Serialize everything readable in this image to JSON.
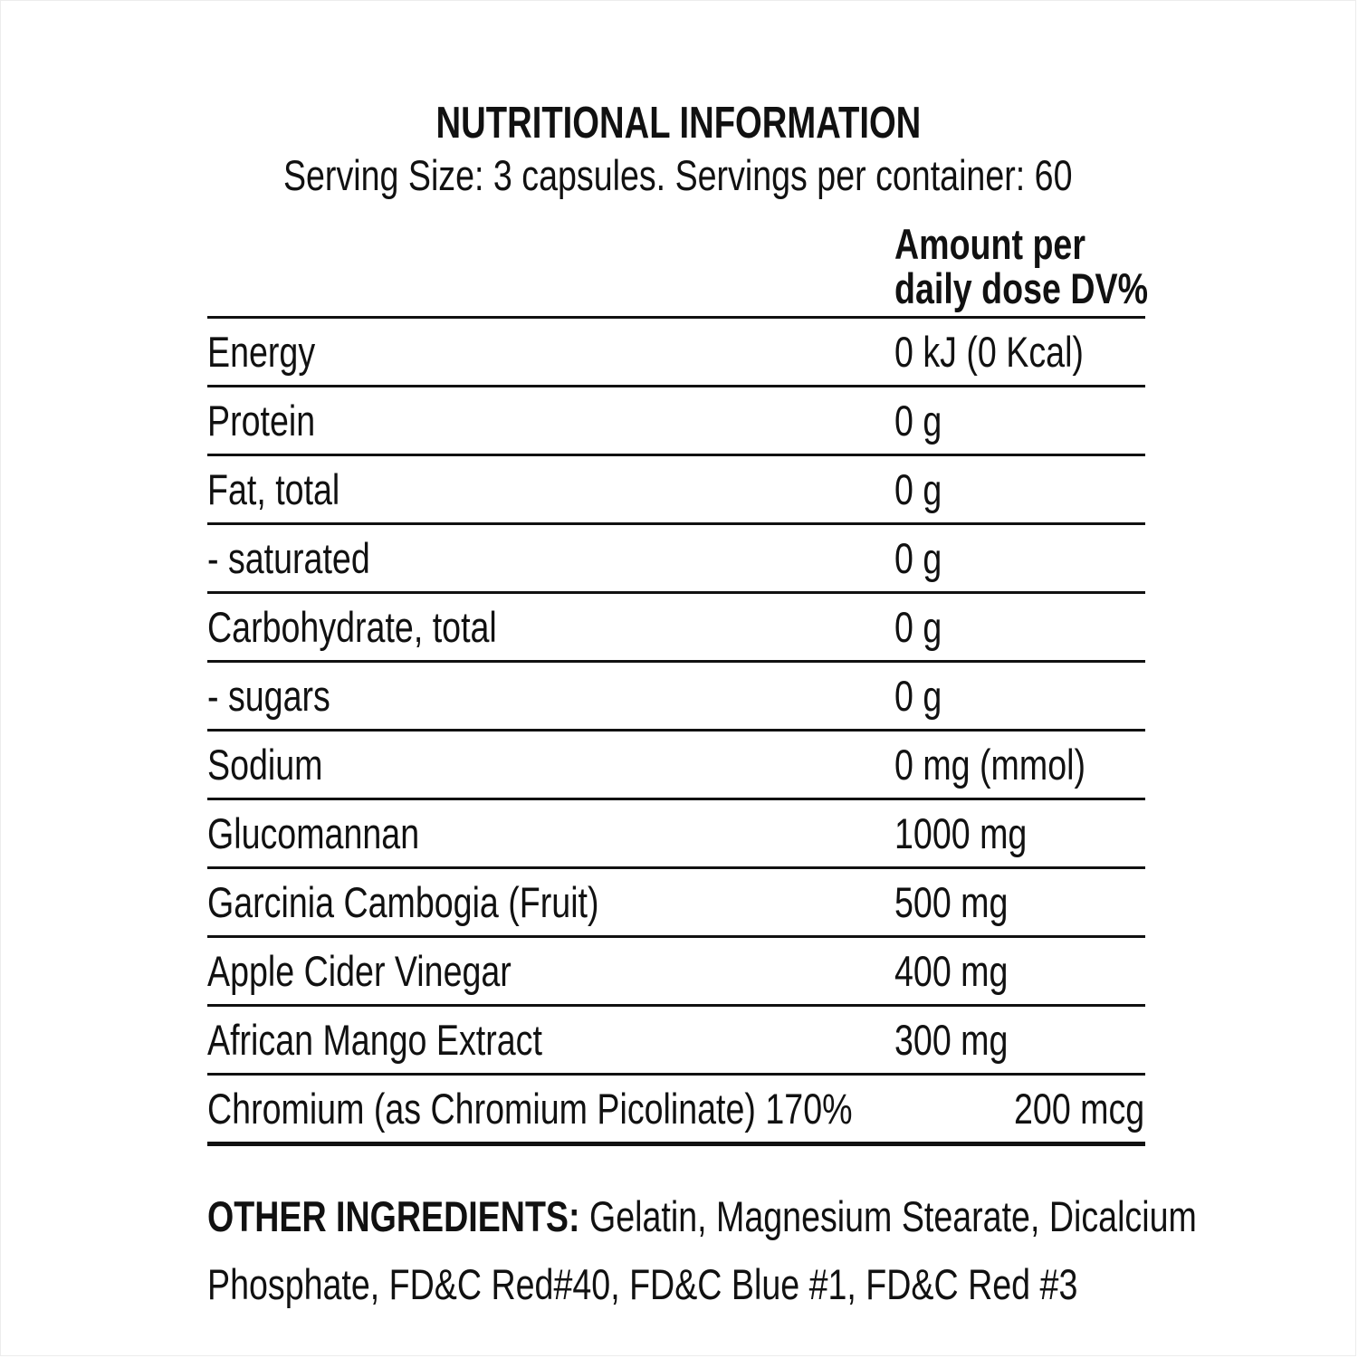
{
  "page": {
    "background": "#ffffff",
    "text_color": "#111111",
    "rule_color": "#111111"
  },
  "header": {
    "title": "NUTRITIONAL INFORMATION",
    "serving_info": "Serving Size: 3 capsules. Servings per container: 60"
  },
  "table": {
    "amount_header_line1": "Amount per",
    "amount_header_line2": "daily dose DV%",
    "rows": [
      {
        "label": "Energy",
        "amount": "0 kJ (0 Kcal)"
      },
      {
        "label": "Protein",
        "amount": "0 g"
      },
      {
        "label": "Fat, total",
        "amount": "0 g"
      },
      {
        "label": "- saturated",
        "amount": "0 g"
      },
      {
        "label": "Carbohydrate, total",
        "amount": "0 g"
      },
      {
        "label": "- sugars",
        "amount": "0 g"
      },
      {
        "label": "Sodium",
        "amount": "0 mg (mmol)"
      },
      {
        "label": "Glucomannan",
        "amount": "1000 mg"
      },
      {
        "label": "Garcinia Cambogia (Fruit)",
        "amount": "500 mg"
      },
      {
        "label": "Apple Cider Vinegar",
        "amount": "400 mg"
      },
      {
        "label": "African Mango Extract",
        "amount": "300 mg"
      },
      {
        "label": "Chromium (as Chromium Picolinate) 170%",
        "amount": "200 mcg"
      }
    ]
  },
  "other_ingredients": {
    "label": "OTHER INGREDIENTS:",
    "line1": "Gelatin, Magnesium Stearate, Dicalcium",
    "line2": "Phosphate, FD&C Red#40, FD&C Blue #1, FD&C Red #3"
  }
}
